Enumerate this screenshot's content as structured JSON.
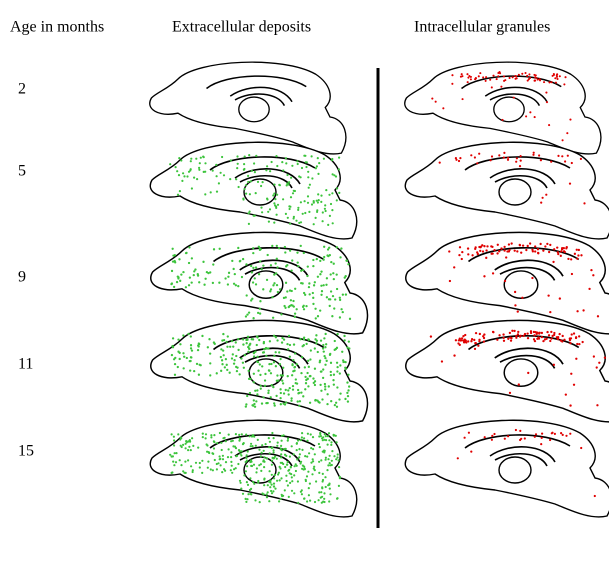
{
  "header": {
    "age": "Age in months",
    "extracellular": "Extracellular deposits",
    "intracellular": "Intracellular granules"
  },
  "rows": [
    {
      "age": "2"
    },
    {
      "age": "5"
    },
    {
      "age": "9"
    },
    {
      "age": "11"
    },
    {
      "age": "15"
    }
  ]
}
